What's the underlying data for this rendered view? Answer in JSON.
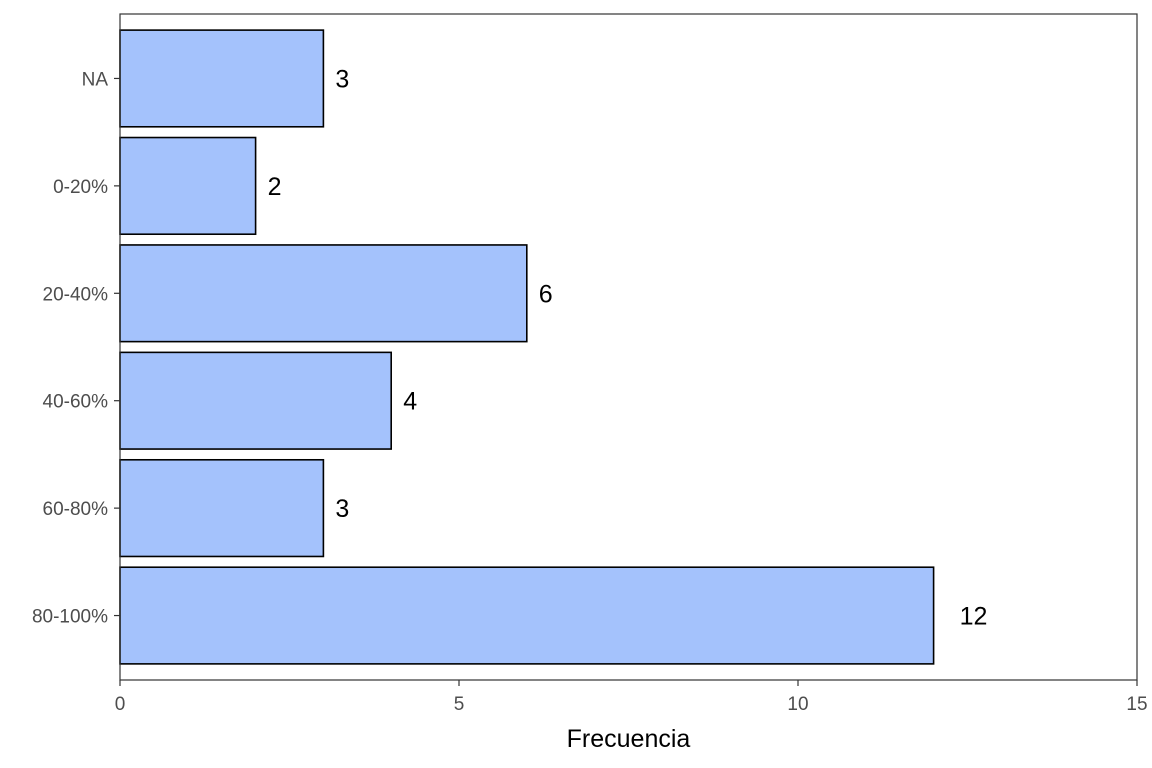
{
  "chart_data": {
    "type": "bar",
    "orientation": "horizontal",
    "categories": [
      "NA",
      "0-20%",
      "20-40%",
      "40-60%",
      "60-80%",
      "80-100%"
    ],
    "values": [
      3,
      2,
      6,
      4,
      3,
      12
    ],
    "data_labels": [
      "3",
      "2",
      "6",
      "4",
      "3",
      "12"
    ],
    "title": "",
    "xlabel": "Frecuencia",
    "ylabel": "",
    "xlim": [
      0,
      15
    ],
    "x_ticks": [
      0,
      5,
      10,
      15
    ],
    "x_tick_labels": [
      "0",
      "5",
      "10",
      "15"
    ],
    "grid": false,
    "legend": "none",
    "bar_fill": "#a4c2fc",
    "bar_stroke": "#000000",
    "panel_border": "#333333",
    "tick_label_color": "#4d4d4d"
  }
}
